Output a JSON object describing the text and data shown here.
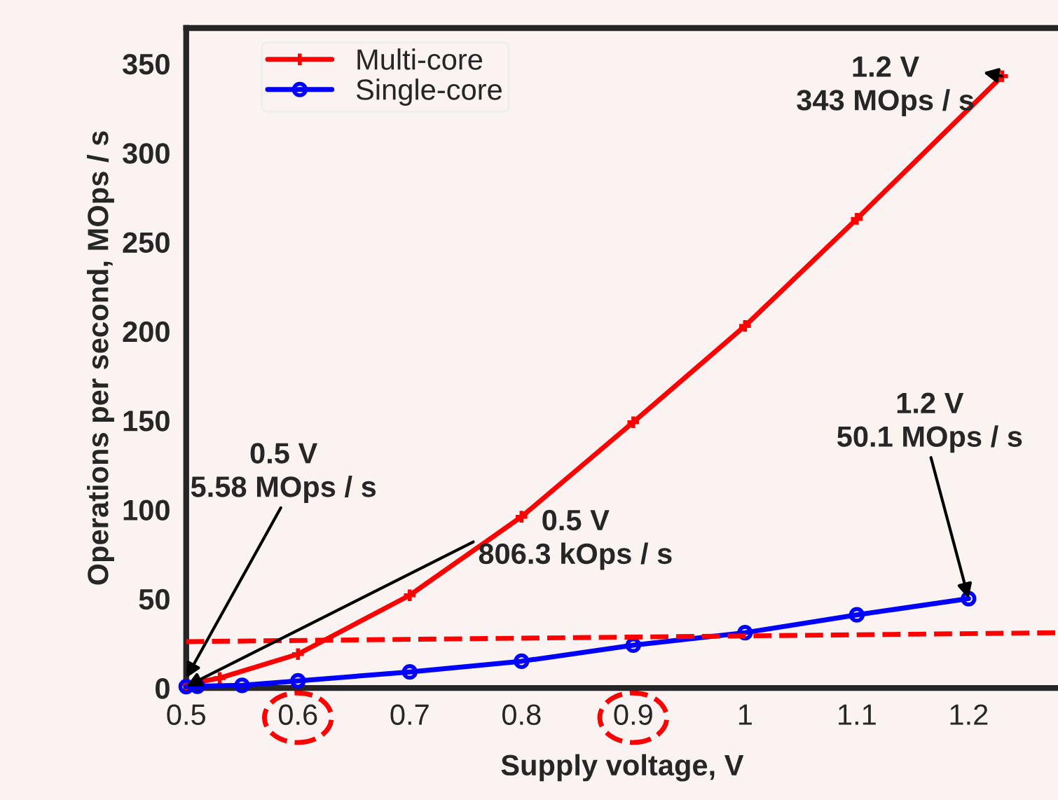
{
  "chart_data": {
    "type": "line",
    "xlabel": "Supply voltage, V",
    "ylabel": "Operations per second, MOps / s",
    "xlim": [
      0.5,
      1.28
    ],
    "xticks": [
      {
        "value": 0.5,
        "label": "0.5"
      },
      {
        "value": 0.6,
        "label": "0.6"
      },
      {
        "value": 0.7,
        "label": "0.7"
      },
      {
        "value": 0.8,
        "label": "0.8"
      },
      {
        "value": 0.9,
        "label": "0.9"
      },
      {
        "value": 1,
        "label": "1"
      },
      {
        "value": 1.1,
        "label": "1.1"
      },
      {
        "value": 1.2,
        "label": "1.2"
      }
    ],
    "ylim": [
      0,
      370
    ],
    "yticks": [
      0,
      50,
      100,
      150,
      200,
      250,
      300,
      350
    ],
    "grid": false,
    "legend": "top left",
    "series": [
      {
        "name": "Multi-core",
        "color": "#ff0000",
        "marker": "cross",
        "line_style": "solid",
        "x": [
          0.5,
          0.53,
          0.6,
          0.7,
          0.8,
          0.9,
          1.0,
          1.1,
          1.23
        ],
        "values": [
          2,
          5.58,
          19,
          52,
          96,
          149,
          203,
          263,
          343
        ]
      },
      {
        "name": "Single-core",
        "color": "#0000ff",
        "marker": "circle",
        "line_style": "solid",
        "x": [
          0.5,
          0.51,
          0.55,
          0.6,
          0.7,
          0.8,
          0.9,
          1.0,
          1.1,
          1.2
        ],
        "values": [
          0.8063,
          1,
          1.5,
          4,
          9,
          15,
          24,
          31,
          41,
          50.1
        ]
      },
      {
        "color": "#ff0000",
        "marker": "none",
        "line_style": "dashed",
        "x": [
          0.5,
          1.28
        ],
        "values": [
          26,
          31
        ]
      }
    ],
    "annotations": [
      {
        "text": "1.2 V\n343 MOps / s",
        "x": 1.23,
        "y": 343
      },
      {
        "text": "0.5 V\n5.58 MOps / s",
        "x": 0.5,
        "y": 5.58
      },
      {
        "text": "0.5 V\n806.3 kOps / s",
        "x": 0.5,
        "y": 0.8063
      },
      {
        "text": "1.2 V\n50.1 MOps / s",
        "x": 1.2,
        "y": 50.1
      }
    ]
  }
}
